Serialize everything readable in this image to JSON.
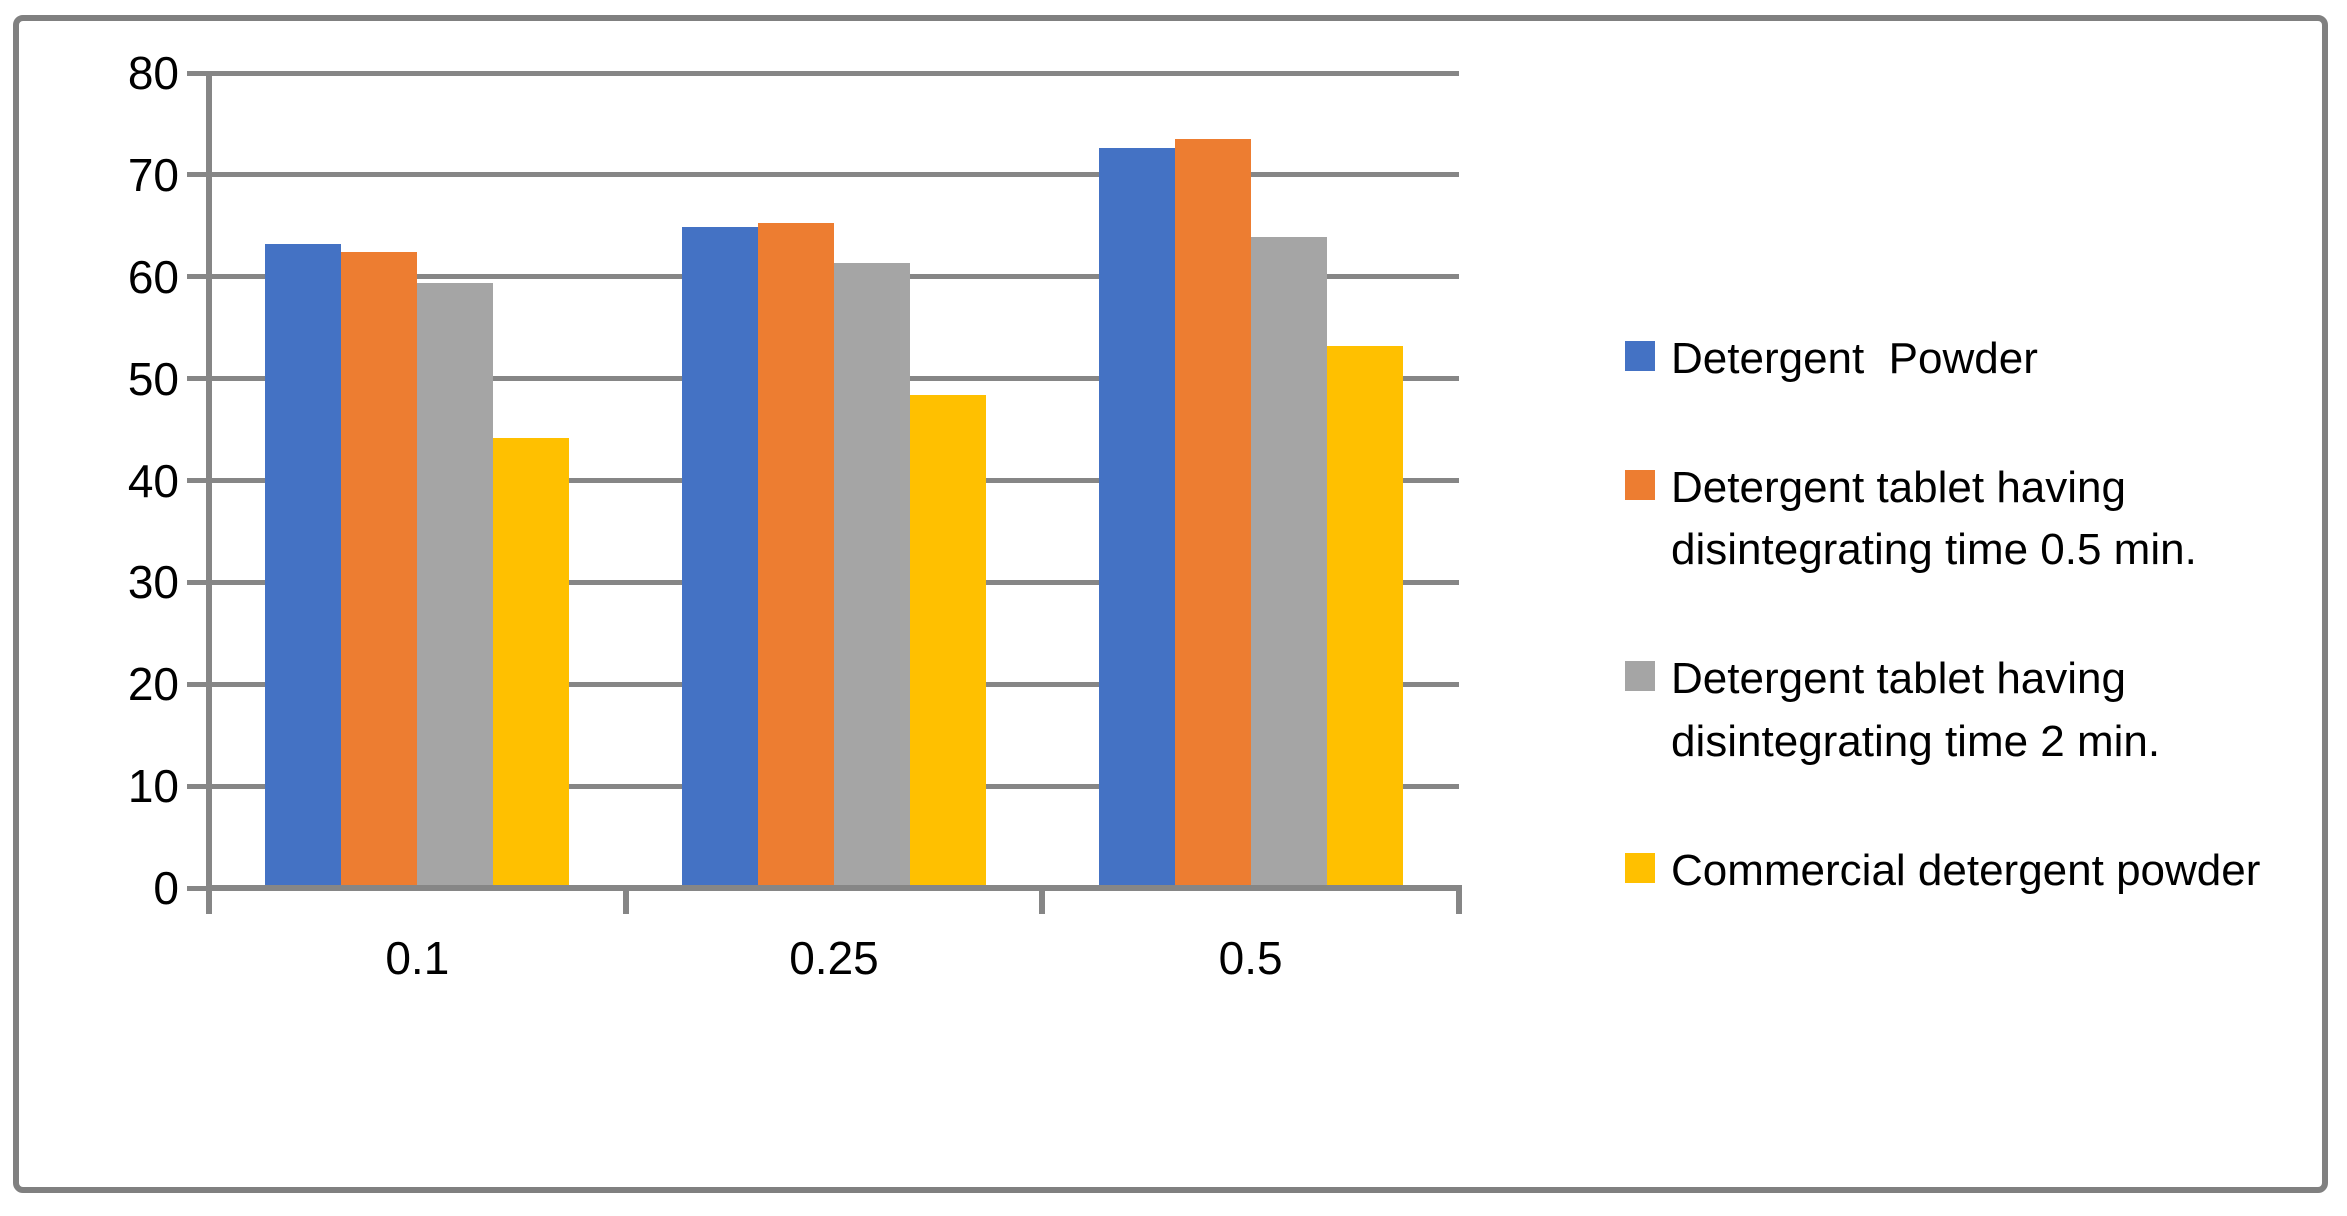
{
  "chart_data": {
    "type": "bar",
    "title": "",
    "xlabel": "",
    "ylabel": "",
    "categories": [
      "0.1",
      "0.25",
      "0.5"
    ],
    "series": [
      {
        "name": "Detergent  Powder",
        "color": "#4472C4",
        "values": [
          63.2,
          64.9,
          72.6
        ]
      },
      {
        "name": "Detergent tablet having disintegrating time 0.5 min.",
        "color": "#ED7D31",
        "values": [
          62.4,
          65.3,
          73.5
        ]
      },
      {
        "name": "Detergent tablet having disintegrating time 2 min.",
        "color": "#A5A5A5",
        "values": [
          59.4,
          61.4,
          63.9
        ]
      },
      {
        "name": "Commercial detergent powder",
        "color": "#FFC000",
        "values": [
          44.2,
          48.4,
          53.2
        ]
      }
    ],
    "ylim": [
      0,
      80
    ],
    "ytick_step": 10,
    "ytick_labels": [
      "80",
      "70",
      "60",
      "50",
      "40",
      "30",
      "20",
      "10",
      "0"
    ],
    "grid": true,
    "legend_position": "right",
    "colors": {
      "gridline": "#868686",
      "axis": "#868686",
      "frame_border": "#808080",
      "background": "#FFFFFF",
      "text": "#000000"
    }
  }
}
